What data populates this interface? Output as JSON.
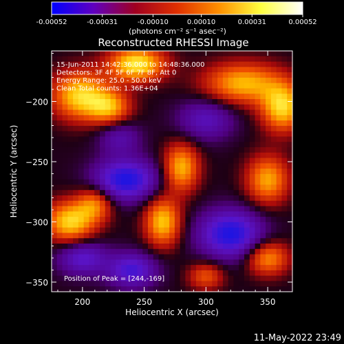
{
  "chart_data": {
    "type": "heatmap",
    "title": "Reconstructed RHESSI Image",
    "xlabel": "Heliocentric X (arcsec)",
    "ylabel": "Heliocentric Y (arcsec)",
    "xlim": [
      175,
      370
    ],
    "ylim": [
      -358,
      -158
    ],
    "x_ticks": [
      200,
      250,
      300,
      350
    ],
    "y_ticks": [
      -200,
      -250,
      -300,
      -350
    ],
    "colorbar": {
      "min": -0.00052,
      "max": 0.00052,
      "tick_values": [
        -0.00052,
        -0.00031,
        -0.0001,
        0.0001,
        0.00031,
        0.00052
      ],
      "tick_labels": [
        "-0.00052",
        "-0.00031",
        "-0.00010",
        "0.00010",
        "0.00031",
        "0.00052"
      ],
      "unit_label": "(photons cm⁻² s⁻¹ asec⁻²)",
      "colors": [
        "#0000ff",
        "#6000c0",
        "#a00020",
        "#e03000",
        "#ff9000",
        "#ffff40",
        "#ffffff"
      ]
    },
    "info_lines": [
      "15-Jun-2011 14:42:36.000 to 14:48:36.000",
      "Detectors: 3F 4F 5F 6F 7F 8F, Att 0",
      "Energy Range: 25.0 - 50.0 keV",
      "Clean    Total counts: 1.36E+04"
    ],
    "peak_label": "Position of Peak = [244,-169]",
    "peak": {
      "x": 244,
      "y": -169
    },
    "sources": [
      {
        "x": 244,
        "y": -169,
        "sx": 16,
        "sy": 10,
        "amp": 1.0
      },
      {
        "x": 198,
        "y": -195,
        "sx": 16,
        "sy": 14,
        "amp": 0.9
      },
      {
        "x": 222,
        "y": -205,
        "sx": 12,
        "sy": 10,
        "amp": 0.7
      },
      {
        "x": 330,
        "y": -185,
        "sx": 22,
        "sy": 12,
        "amp": 0.8
      },
      {
        "x": 362,
        "y": -205,
        "sx": 12,
        "sy": 14,
        "amp": 0.9
      },
      {
        "x": 280,
        "y": -255,
        "sx": 10,
        "sy": 14,
        "amp": 0.8
      },
      {
        "x": 265,
        "y": -300,
        "sx": 10,
        "sy": 14,
        "amp": 0.85
      },
      {
        "x": 350,
        "y": -265,
        "sx": 12,
        "sy": 14,
        "amp": 0.75
      },
      {
        "x": 190,
        "y": -300,
        "sx": 14,
        "sy": 12,
        "amp": 0.9
      },
      {
        "x": 210,
        "y": -285,
        "sx": 10,
        "sy": 10,
        "amp": 0.6
      },
      {
        "x": 350,
        "y": -330,
        "sx": 12,
        "sy": 10,
        "amp": 0.7
      },
      {
        "x": 300,
        "y": -345,
        "sx": 10,
        "sy": 8,
        "amp": 0.5
      },
      {
        "x": 235,
        "y": -265,
        "sx": 18,
        "sy": 12,
        "amp": -0.9
      },
      {
        "x": 320,
        "y": -310,
        "sx": 18,
        "sy": 14,
        "amp": -0.9
      },
      {
        "x": 240,
        "y": -340,
        "sx": 14,
        "sy": 10,
        "amp": -0.7
      },
      {
        "x": 200,
        "y": -330,
        "sx": 14,
        "sy": 10,
        "amp": -0.6
      },
      {
        "x": 300,
        "y": -215,
        "sx": 16,
        "sy": 12,
        "amp": -0.5
      },
      {
        "x": 230,
        "y": -230,
        "sx": 12,
        "sy": 10,
        "amp": -0.4
      }
    ]
  },
  "footer": {
    "timestamp": "11-May-2022 23:49"
  }
}
